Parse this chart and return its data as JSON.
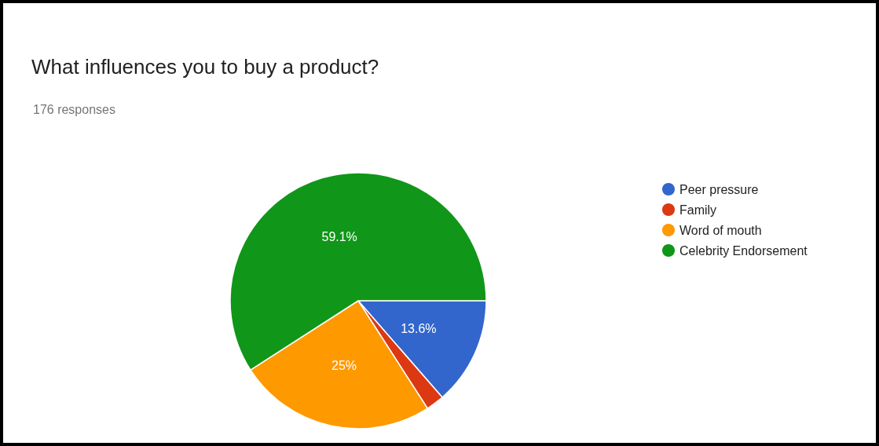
{
  "chart_data": {
    "type": "pie",
    "title": "What influences you to buy a product?",
    "subtitle": "176 responses",
    "categories": [
      "Peer pressure",
      "Family",
      "Word of mouth",
      "Celebrity Endorsement"
    ],
    "values": [
      13.6,
      2.3,
      25,
      59.1
    ],
    "colors": [
      "#3366cc",
      "#dc3912",
      "#ff9900",
      "#109618"
    ],
    "value_labels": [
      "13.6%",
      null,
      "25%",
      "59.1%"
    ],
    "legend": "right"
  }
}
